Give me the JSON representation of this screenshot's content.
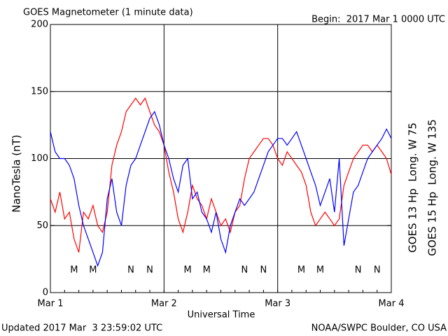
{
  "chart_data": {
    "type": "line",
    "title": "GOES Magnetometer (1 minute data)",
    "subtitle": "Begin:  2017 Mar 1 0000 UTC",
    "y_label": "NanoTesla (nT)",
    "x_label": "Universal Time",
    "footer_left": "Updated 2017 Mar  3 23:59:02 UTC",
    "footer_right": "NOAA/SWPC Boulder, CO USA",
    "xlim": [
      0,
      72
    ],
    "xticks": [
      {
        "value": 0,
        "label": "Mar 1"
      },
      {
        "value": 24,
        "label": "Mar 2"
      },
      {
        "value": 48,
        "label": "Mar 3"
      },
      {
        "value": 72,
        "label": "Mar 4"
      }
    ],
    "ylim": [
      0,
      200
    ],
    "yticks": [
      0,
      50,
      100,
      150,
      200
    ],
    "grid": true,
    "x": [
      0,
      1,
      2,
      3,
      4,
      5,
      6,
      7,
      8,
      9,
      10,
      11,
      12,
      13,
      14,
      15,
      16,
      17,
      18,
      19,
      20,
      21,
      22,
      23,
      24,
      25,
      26,
      27,
      28,
      29,
      30,
      31,
      32,
      33,
      34,
      35,
      36,
      37,
      38,
      39,
      40,
      41,
      42,
      43,
      44,
      45,
      46,
      47,
      48,
      49,
      50,
      51,
      52,
      53,
      54,
      55,
      56,
      57,
      58,
      59,
      60,
      61,
      62,
      63,
      64,
      65,
      66,
      67,
      68,
      69,
      70,
      71,
      72
    ],
    "series": [
      {
        "name": "GOES 13 Hp  Long. W 75",
        "color": "#ff0000",
        "values": [
          70,
          60,
          75,
          55,
          60,
          40,
          30,
          60,
          55,
          65,
          50,
          45,
          60,
          95,
          110,
          120,
          135,
          140,
          145,
          140,
          145,
          135,
          125,
          120,
          110,
          90,
          75,
          55,
          45,
          60,
          80,
          70,
          65,
          55,
          70,
          60,
          50,
          55,
          45,
          60,
          65,
          85,
          100,
          105,
          110,
          115,
          115,
          110,
          100,
          95,
          105,
          100,
          95,
          90,
          80,
          60,
          50,
          55,
          60,
          55,
          50,
          55,
          80,
          90,
          100,
          105,
          110,
          110,
          105,
          110,
          105,
          100,
          88
        ]
      },
      {
        "name": "GOES 15 Hp  Long. W 135",
        "color": "#0000ff",
        "values": [
          120,
          105,
          100,
          100,
          95,
          85,
          65,
          50,
          40,
          30,
          20,
          30,
          70,
          85,
          60,
          50,
          80,
          95,
          100,
          110,
          120,
          130,
          135,
          125,
          110,
          100,
          85,
          75,
          95,
          100,
          70,
          75,
          60,
          55,
          45,
          60,
          40,
          30,
          50,
          60,
          70,
          65,
          70,
          75,
          85,
          95,
          105,
          110,
          115,
          115,
          110,
          115,
          120,
          110,
          100,
          90,
          80,
          65,
          75,
          85,
          60,
          100,
          35,
          55,
          75,
          80,
          90,
          100,
          105,
          110,
          115,
          122,
          115
        ]
      }
    ],
    "annotations": [
      {
        "text": "M",
        "x": 5,
        "color": "#ff0000"
      },
      {
        "text": "M",
        "x": 9,
        "color": "#0000ff"
      },
      {
        "text": "N",
        "x": 17,
        "color": "#ff0000"
      },
      {
        "text": "N",
        "x": 21,
        "color": "#0000ff"
      },
      {
        "text": "M",
        "x": 29,
        "color": "#ff0000"
      },
      {
        "text": "M",
        "x": 33,
        "color": "#0000ff"
      },
      {
        "text": "N",
        "x": 41,
        "color": "#ff0000"
      },
      {
        "text": "N",
        "x": 45,
        "color": "#0000ff"
      },
      {
        "text": "M",
        "x": 53,
        "color": "#ff0000"
      },
      {
        "text": "M",
        "x": 57,
        "color": "#0000ff"
      },
      {
        "text": "N",
        "x": 65,
        "color": "#ff0000"
      },
      {
        "text": "N",
        "x": 69,
        "color": "#0000ff"
      }
    ]
  }
}
